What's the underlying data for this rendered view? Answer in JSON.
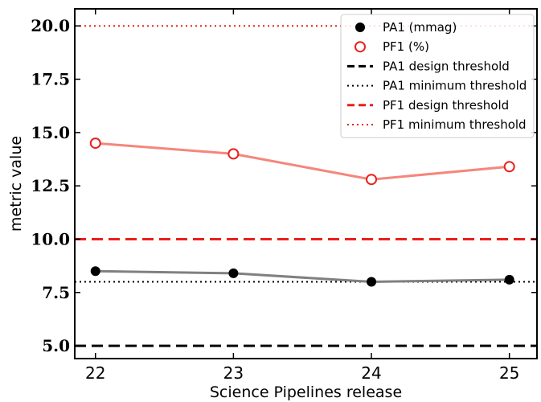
{
  "chart_data": {
    "type": "line",
    "title": "",
    "xlabel": "Science Pipelines release",
    "ylabel": "metric value",
    "categories": [
      "22",
      "23",
      "24",
      "25"
    ],
    "xlim": [
      21.85,
      25.2
    ],
    "ylim": [
      4.4,
      20.8
    ],
    "yticks": [
      "5.0",
      "7.5",
      "10.0",
      "12.5",
      "15.0",
      "17.5",
      "20.0"
    ],
    "grid": false,
    "legend_position": "top-right",
    "series": [
      {
        "name": "PA1 (mmag)",
        "values": [
          8.5,
          8.4,
          8.0,
          8.1
        ],
        "color": "#000000",
        "line_color": "#808080",
        "marker": "filled-circle"
      },
      {
        "name": "PF1 (%)",
        "values": [
          14.5,
          14.0,
          12.8,
          13.4
        ],
        "color": "#e8201e",
        "line_color": "#f4877b",
        "marker": "open-circle"
      }
    ],
    "thresholds": [
      {
        "name": "PA1 design threshold",
        "value": 5.0,
        "color": "#000000",
        "style": "dashed"
      },
      {
        "name": "PA1 minimum threshold",
        "value": 8.0,
        "color": "#000000",
        "style": "dotted"
      },
      {
        "name": "PF1 design threshold",
        "value": 10.0,
        "color": "#e8201e",
        "style": "dashed"
      },
      {
        "name": "PF1 minimum threshold",
        "value": 20.0,
        "color": "#e8201e",
        "style": "dotted"
      }
    ]
  }
}
